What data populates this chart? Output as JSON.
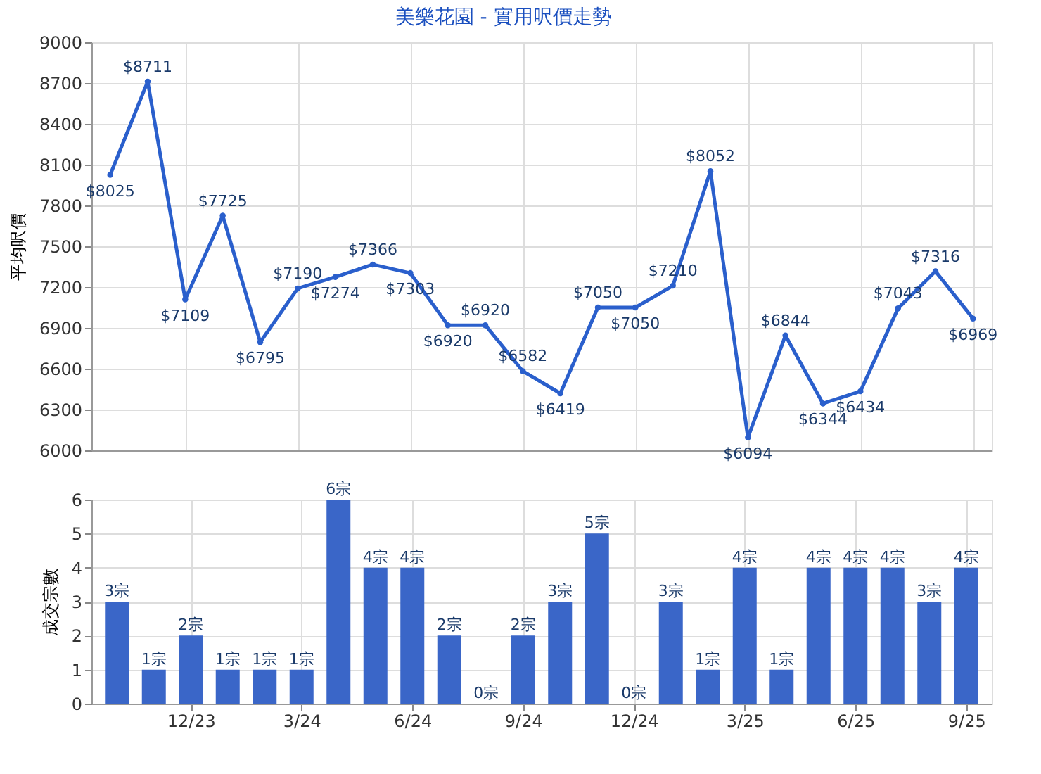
{
  "chart_data": [
    {
      "type": "line",
      "title": "美樂花園 - 實用呎價走勢",
      "ylabel": "平均呎價",
      "series": [
        {
          "color": "#2a5fcc",
          "values": [
            8025,
            8711,
            7109,
            7725,
            6795,
            7190,
            7274,
            7366,
            7303,
            6920,
            6920,
            6582,
            6419,
            7050,
            7050,
            7210,
            8052,
            6094,
            6844,
            6344,
            6434,
            7043,
            7316,
            6969
          ],
          "value_labels": [
            "$8025",
            "$8711",
            "$7109",
            "$7725",
            "$6795",
            "$7190",
            "$7274",
            "$7366",
            "$7303",
            "$6920",
            "$6920",
            "$6582",
            "$6419",
            "$7050",
            "$7050",
            "$7210",
            "$8052",
            "$6094",
            "$6844",
            "$6344",
            "$6434",
            "$7043",
            "$7316",
            "$6969"
          ]
        }
      ],
      "ylim": [
        6000,
        9000
      ],
      "yticks": [
        6000,
        6300,
        6600,
        6900,
        7200,
        7500,
        7800,
        8100,
        8400,
        8700,
        9000
      ],
      "grid": true,
      "marker": "circle",
      "line_style": "solid",
      "tick_labels": "y"
    },
    {
      "type": "bar",
      "ylabel": "成交宗數",
      "categories": [
        null,
        null,
        "12/23",
        null,
        null,
        "3/24",
        null,
        null,
        "6/24",
        null,
        null,
        "9/24",
        null,
        null,
        "12/24",
        null,
        null,
        "3/25",
        null,
        null,
        "6/25",
        null,
        null,
        "9/25"
      ],
      "series": [
        {
          "color": "#3a66c8",
          "values": [
            3,
            1,
            2,
            1,
            1,
            1,
            6,
            4,
            4,
            2,
            0,
            2,
            3,
            5,
            0,
            3,
            1,
            4,
            1,
            4,
            4,
            4,
            3,
            4
          ],
          "value_labels": [
            "3宗",
            "1宗",
            "2宗",
            "1宗",
            "1宗",
            "1宗",
            "6宗",
            "4宗",
            "4宗",
            "2宗",
            "0宗",
            "2宗",
            "3宗",
            "5宗",
            "0宗",
            "3宗",
            "1宗",
            "4宗",
            "1宗",
            "4宗",
            "4宗",
            "4宗",
            "3宗",
            "4宗"
          ]
        }
      ],
      "ylim": [
        0,
        6
      ],
      "yticks": [
        0,
        1,
        2,
        3,
        4,
        5,
        6
      ],
      "grid": true
    }
  ]
}
